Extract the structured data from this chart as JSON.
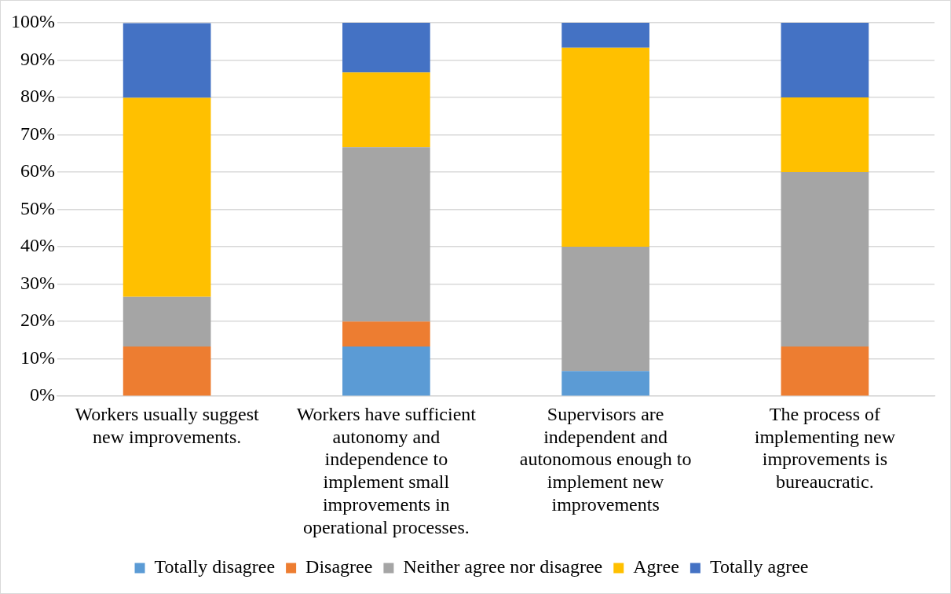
{
  "chart_data": {
    "type": "bar",
    "stacked": true,
    "categories": [
      "Workers usually suggest new improvements.",
      "Workers have sufficient autonomy and independence to implement small improvements in operational processes.",
      "Supervisors are independent and autonomous enough to implement new improvements",
      "The process of implementing new improvements is bureaucratic."
    ],
    "series": [
      {
        "name": "Totally disagree",
        "color": "#5b9bd5",
        "values": [
          0,
          13.3,
          6.7,
          0
        ]
      },
      {
        "name": "Disagree",
        "color": "#ed7d31",
        "values": [
          13.3,
          6.7,
          0,
          13.3
        ]
      },
      {
        "name": "Neither agree nor disagree",
        "color": "#a5a5a5",
        "values": [
          13.3,
          46.7,
          33.3,
          46.7
        ]
      },
      {
        "name": "Agree",
        "color": "#ffc000",
        "values": [
          53.3,
          20,
          53.3,
          20
        ]
      },
      {
        "name": "Totally agree",
        "color": "#4472c4",
        "values": [
          20,
          13.3,
          6.7,
          20
        ]
      }
    ],
    "ylim": [
      0,
      100
    ],
    "yticks": [
      {
        "value": 0,
        "label": "0%"
      },
      {
        "value": 10,
        "label": "10%"
      },
      {
        "value": 20,
        "label": "20%"
      },
      {
        "value": 30,
        "label": "30%"
      },
      {
        "value": 40,
        "label": "40%"
      },
      {
        "value": 50,
        "label": "50%"
      },
      {
        "value": 60,
        "label": "60%"
      },
      {
        "value": 70,
        "label": "70%"
      },
      {
        "value": 80,
        "label": "80%"
      },
      {
        "value": 90,
        "label": "90%"
      },
      {
        "value": 100,
        "label": "100%"
      }
    ],
    "grid": "y",
    "legend": "bottom"
  }
}
